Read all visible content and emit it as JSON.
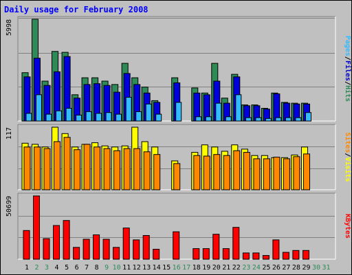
{
  "chart_data": {
    "type": "bar",
    "title": "Daily usage for February 2008",
    "x": [
      "1",
      "2",
      "3",
      "4",
      "5",
      "6",
      "7",
      "8",
      "9",
      "10",
      "11",
      "12",
      "13",
      "14",
      "15",
      "16",
      "17",
      "18",
      "19",
      "20",
      "21",
      "22",
      "23",
      "24",
      "25",
      "26",
      "27",
      "28",
      "29",
      "30",
      "31"
    ],
    "weekend_days": [
      "2",
      "3",
      "9",
      "10",
      "16",
      "17",
      "23",
      "24",
      "30",
      "31"
    ],
    "panels": [
      {
        "name": "pages-files-hits",
        "ymax_label": "5998",
        "ymax": 5998,
        "legend": [
          "Pages",
          "/",
          "Files",
          "/",
          "Hits"
        ],
        "legend_colors": [
          "#33bbff",
          "#000000",
          "#0000cc",
          "#000000",
          "#2e8b57"
        ],
        "series": [
          {
            "name": "Hits",
            "color": "#2e8b57",
            "values": [
              2850,
              5998,
              2350,
              4100,
              4050,
              1550,
              2550,
              2550,
              2350,
              2150,
              3400,
              2550,
              2000,
              1200,
              null,
              2550,
              null,
              1950,
              1650,
              3400,
              1350,
              2750,
              950,
              950,
              750,
              1650,
              1100,
              1050,
              1050,
              null,
              null
            ]
          },
          {
            "name": "Files",
            "color": "#0000dd",
            "values": [
              2600,
              3700,
              2100,
              2900,
              3800,
              1350,
              2150,
              2200,
              2100,
              1700,
              2800,
              2150,
              1650,
              1100,
              null,
              2250,
              null,
              1650,
              1550,
              2350,
              1050,
              2600,
              900,
              900,
              700,
              1600,
              1050,
              1000,
              1000,
              null,
              null
            ]
          },
          {
            "name": "Pages",
            "color": "#33bbff",
            "values": [
              450,
              1550,
              400,
              600,
              750,
              350,
              550,
              450,
              500,
              400,
              1400,
              550,
              1000,
              400,
              null,
              1100,
              null,
              250,
              250,
              1050,
              250,
              1550,
              200,
              200,
              150,
              200,
              200,
              200,
              500,
              null,
              null
            ]
          }
        ]
      },
      {
        "name": "sites-visits",
        "ymax_label": "117",
        "ymax": 117,
        "legend": [
          "Sites",
          "/",
          "Visits"
        ],
        "legend_colors": [
          "#ff8800",
          "#000000",
          "#ffff00"
        ],
        "series": [
          {
            "name": "Visits",
            "color": "#ffff00",
            "values": [
              87,
              85,
              80,
              117,
              105,
              80,
              85,
              88,
              82,
              80,
              82,
              117,
              90,
              80,
              null,
              54,
              null,
              70,
              84,
              80,
              72,
              84,
              76,
              64,
              64,
              60,
              60,
              65,
              80,
              null,
              null
            ]
          },
          {
            "name": "Sites",
            "color": "#ff8800",
            "values": [
              80,
              80,
              77,
              90,
              98,
              75,
              85,
              80,
              77,
              73,
              77,
              77,
              71,
              66,
              null,
              49,
              null,
              64,
              63,
              66,
              64,
              73,
              70,
              58,
              58,
              61,
              58,
              62,
              67,
              null,
              null
            ]
          }
        ]
      },
      {
        "name": "kbytes",
        "ymax_label": "50699",
        "ymax": 50699,
        "legend": [
          "KBytes"
        ],
        "legend_colors": [
          "#ff0000"
        ],
        "series": [
          {
            "name": "KBytes",
            "color": "#ff0000",
            "values": [
              23000,
              50699,
              16500,
              27000,
              31000,
              9500,
              16000,
              19500,
              16000,
              9500,
              25000,
              15500,
              19000,
              8000,
              null,
              22000,
              null,
              8500,
              8500,
              20000,
              8500,
              25500,
              5000,
              5000,
              3000,
              15500,
              5500,
              7000,
              7000,
              null,
              null
            ]
          }
        ]
      }
    ]
  }
}
